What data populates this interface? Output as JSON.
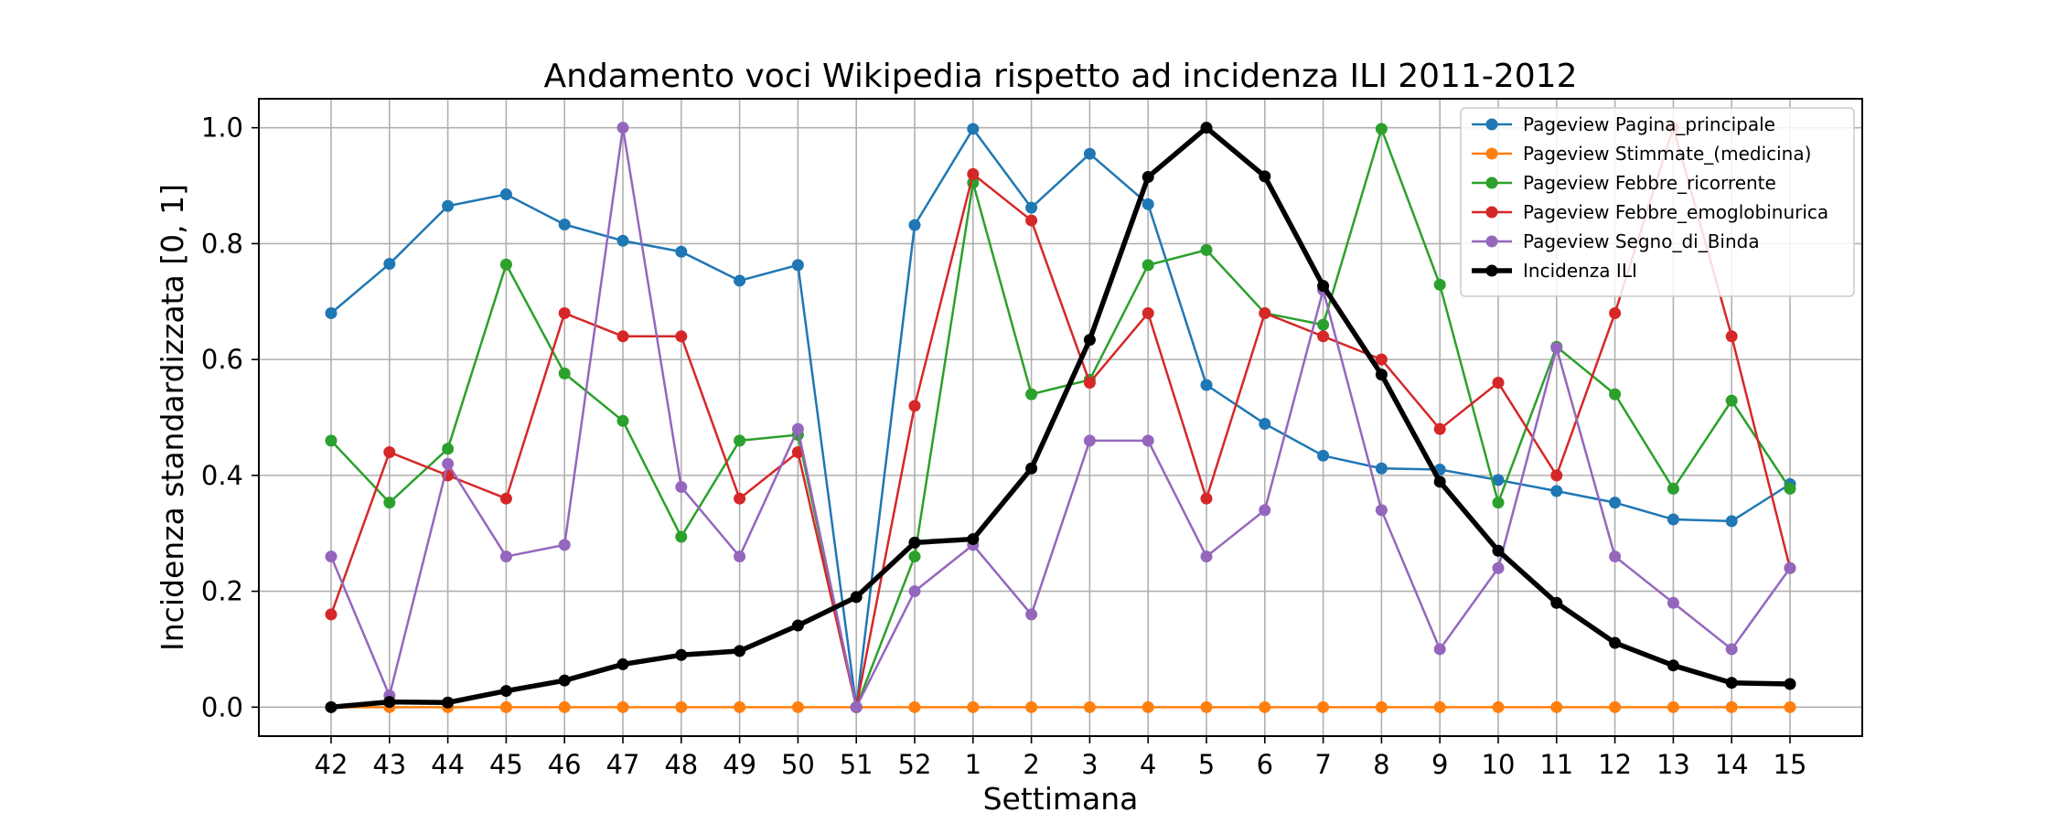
{
  "chart_data": {
    "type": "line",
    "title": "Andamento voci Wikipedia rispetto ad incidenza ILI 2011-2012",
    "xlabel": "Settimana",
    "ylabel": "Incidenza standardizzata [0, 1]",
    "categories": [
      "42",
      "43",
      "44",
      "45",
      "46",
      "47",
      "48",
      "49",
      "50",
      "51",
      "52",
      "1",
      "2",
      "3",
      "4",
      "5",
      "6",
      "7",
      "8",
      "9",
      "10",
      "11",
      "12",
      "13",
      "14",
      "15"
    ],
    "yticks": [
      "0.0",
      "0.2",
      "0.4",
      "0.6",
      "0.8",
      "1.0"
    ],
    "ylim": [
      -0.05,
      1.05
    ],
    "grid": true,
    "legend_position": "top-right",
    "series": [
      {
        "name": "Pageview Pagina_principale",
        "color": "#1f77b4",
        "width": 2.5,
        "values": [
          0.68,
          0.765,
          0.865,
          0.885,
          0.833,
          0.805,
          0.786,
          0.736,
          0.763,
          0.0,
          0.832,
          0.998,
          0.862,
          0.955,
          0.868,
          0.556,
          0.489,
          0.434,
          0.412,
          0.41,
          0.392,
          0.373,
          0.353,
          0.324,
          0.321,
          0.385
        ]
      },
      {
        "name": "Pageview Stimmate_(medicina)",
        "color": "#ff7f0e",
        "width": 2.5,
        "values": [
          0,
          0,
          0,
          0,
          0,
          0,
          0,
          0,
          0,
          0,
          0,
          0,
          0,
          0,
          0,
          0,
          0,
          0,
          0,
          0,
          0,
          0,
          0,
          0,
          0,
          0
        ]
      },
      {
        "name": "Pageview Febbre_ricorrente",
        "color": "#2ca02c",
        "width": 2.5,
        "values": [
          0.46,
          0.353,
          0.446,
          0.764,
          0.576,
          0.494,
          0.294,
          0.46,
          0.47,
          0.0,
          0.26,
          0.905,
          0.54,
          0.565,
          0.763,
          0.789,
          0.68,
          0.66,
          0.998,
          0.729,
          0.353,
          0.622,
          0.54,
          0.377,
          0.529,
          0.377
        ]
      },
      {
        "name": "Pageview Febbre_emoglobinurica",
        "color": "#d62728",
        "width": 2.5,
        "values": [
          0.16,
          0.44,
          0.4,
          0.36,
          0.68,
          0.64,
          0.64,
          0.36,
          0.44,
          0.0,
          0.52,
          0.92,
          0.84,
          0.56,
          0.68,
          0.36,
          0.68,
          0.64,
          0.6,
          0.48,
          0.56,
          0.4,
          0.68,
          1.0,
          0.64,
          0.24
        ]
      },
      {
        "name": "Pageview Segno_di_Binda",
        "color": "#9467bd",
        "width": 2.5,
        "values": [
          0.26,
          0.02,
          0.42,
          0.26,
          0.28,
          1.0,
          0.38,
          0.26,
          0.48,
          0.0,
          0.2,
          0.28,
          0.16,
          0.46,
          0.46,
          0.26,
          0.34,
          0.72,
          0.34,
          0.1,
          0.24,
          0.62,
          0.26,
          0.18,
          0.1,
          0.24
        ]
      },
      {
        "name": "Incidenza ILI",
        "color": "#000000",
        "width": 5.5,
        "values": [
          0.0,
          0.009,
          0.008,
          0.028,
          0.046,
          0.074,
          0.09,
          0.097,
          0.141,
          0.19,
          0.284,
          0.29,
          0.412,
          0.634,
          0.915,
          1.0,
          0.916,
          0.727,
          0.574,
          0.389,
          0.27,
          0.18,
          0.111,
          0.072,
          0.042,
          0.04
        ]
      }
    ]
  }
}
